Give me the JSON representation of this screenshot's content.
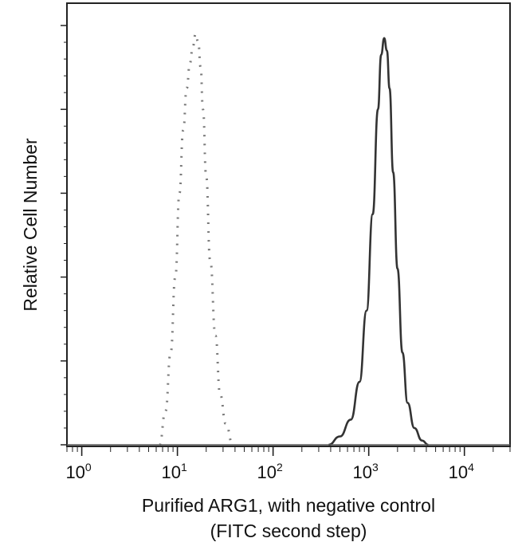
{
  "chart_data": {
    "type": "line",
    "title": "",
    "xlabel_line1": "Purified ARG1, with negative control",
    "xlabel_line2": "(FITC second step)",
    "ylabel": "Relative Cell Number",
    "x_scale": "log",
    "xlim": [
      0.7,
      30000
    ],
    "ylim": [
      0,
      100
    ],
    "x_ticks": [
      {
        "base": "10",
        "exp": "0",
        "value": 1
      },
      {
        "base": "10",
        "exp": "1",
        "value": 10
      },
      {
        "base": "10",
        "exp": "2",
        "value": 100
      },
      {
        "base": "10",
        "exp": "3",
        "value": 1000
      },
      {
        "base": "10",
        "exp": "4",
        "value": 10000
      }
    ],
    "y_major_ticks": [
      0,
      20,
      40,
      60,
      80,
      100
    ],
    "grid": false,
    "legend": "none",
    "series": [
      {
        "style": "dotted",
        "color": "#7a7a7a",
        "x": [
          6.5,
          7.5,
          8.5,
          9.5,
          10.5,
          11.5,
          12.5,
          13.5,
          14.5,
          15.5,
          16.5,
          17.5,
          18.5,
          20,
          22,
          25,
          28,
          32,
          38
        ],
        "y": [
          0,
          8,
          22,
          40,
          60,
          75,
          85,
          91,
          95,
          98,
          96,
          90,
          80,
          64,
          44,
          26,
          12,
          5,
          0
        ]
      },
      {
        "style": "solid",
        "color": "#333333",
        "x": [
          380,
          500,
          650,
          800,
          950,
          1100,
          1250,
          1350,
          1450,
          1550,
          1650,
          1800,
          2000,
          2250,
          2550,
          3000,
          3600,
          4200
        ],
        "y": [
          0,
          2,
          6,
          15,
          32,
          55,
          80,
          93,
          97,
          94,
          85,
          65,
          42,
          22,
          10,
          4,
          1,
          0
        ]
      }
    ]
  }
}
